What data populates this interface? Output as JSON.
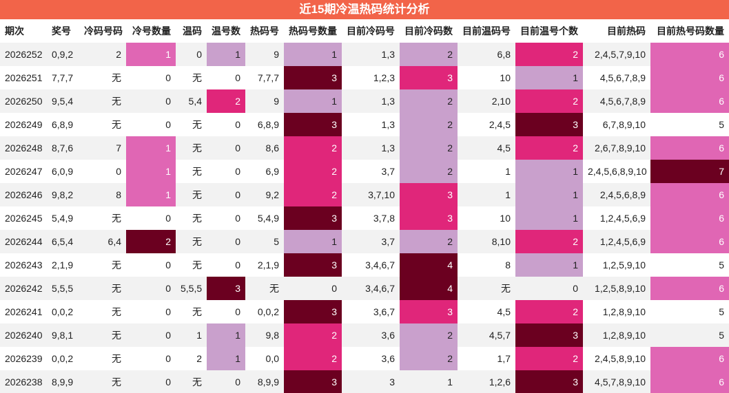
{
  "title": "近15期冷温热码统计分析",
  "table": {
    "columns": [
      "期次",
      "奖号",
      "冷码号码",
      "冷号数量",
      "温码",
      "温号数",
      "热码号",
      "热码号数量",
      "目前冷码号",
      "目前冷码数",
      "目前温码号",
      "目前温号个数",
      "目前热码",
      "目前热号码数量"
    ],
    "rows": [
      [
        "2026252",
        "0,9,2",
        "2",
        1,
        "0",
        1,
        "9",
        1,
        "1,3",
        2,
        "6,8",
        2,
        "2,4,5,7,9,10",
        6
      ],
      [
        "2026251",
        "7,7,7",
        "无",
        0,
        "无",
        0,
        "7,7,7",
        3,
        "1,2,3",
        3,
        "10",
        1,
        "4,5,6,7,8,9",
        6
      ],
      [
        "2026250",
        "9,5,4",
        "无",
        0,
        "5,4",
        2,
        "9",
        1,
        "1,3",
        2,
        "2,10",
        2,
        "4,5,6,7,8,9",
        6
      ],
      [
        "2026249",
        "6,8,9",
        "无",
        0,
        "无",
        0,
        "6,8,9",
        3,
        "1,3",
        2,
        "2,4,5",
        3,
        "6,7,8,9,10",
        5
      ],
      [
        "2026248",
        "8,7,6",
        "7",
        1,
        "无",
        0,
        "8,6",
        2,
        "1,3",
        2,
        "4,5",
        2,
        "2,6,7,8,9,10",
        6
      ],
      [
        "2026247",
        "6,0,9",
        "0",
        1,
        "无",
        0,
        "6,9",
        2,
        "3,7",
        2,
        "1",
        1,
        "2,4,5,6,8,9,10",
        7
      ],
      [
        "2026246",
        "9,8,2",
        "8",
        1,
        "无",
        0,
        "9,2",
        2,
        "3,7,10",
        3,
        "1",
        1,
        "2,4,5,6,8,9",
        6
      ],
      [
        "2026245",
        "5,4,9",
        "无",
        0,
        "无",
        0,
        "5,4,9",
        3,
        "3,7,8",
        3,
        "10",
        1,
        "1,2,4,5,6,9",
        6
      ],
      [
        "2026244",
        "6,5,4",
        "6,4",
        2,
        "无",
        0,
        "5",
        1,
        "3,7",
        2,
        "8,10",
        2,
        "1,2,4,5,6,9",
        6
      ],
      [
        "2026243",
        "2,1,9",
        "无",
        0,
        "无",
        0,
        "2,1,9",
        3,
        "3,4,6,7",
        4,
        "8",
        1,
        "1,2,5,9,10",
        5
      ],
      [
        "2026242",
        "5,5,5",
        "无",
        0,
        "5,5,5",
        3,
        "无",
        0,
        "3,4,6,7",
        4,
        "无",
        0,
        "1,2,5,8,9,10",
        6
      ],
      [
        "2026241",
        "0,0,2",
        "无",
        0,
        "无",
        0,
        "0,0,2",
        3,
        "3,6,7",
        3,
        "4,5",
        2,
        "1,2,8,9,10",
        5
      ],
      [
        "2026240",
        "9,8,1",
        "无",
        0,
        "1",
        1,
        "9,8",
        2,
        "3,6",
        2,
        "4,5,7",
        3,
        "1,2,8,9,10",
        5
      ],
      [
        "2026239",
        "0,0,2",
        "无",
        0,
        "2",
        1,
        "0,0",
        2,
        "3,6",
        2,
        "1,7",
        2,
        "2,4,5,8,9,10",
        6
      ],
      [
        "2026238",
        "8,9,9",
        "无",
        0,
        "无",
        0,
        "8,9,9",
        3,
        "3",
        1,
        "1,2,6",
        3,
        "4,5,7,8,9,10",
        6
      ]
    ]
  },
  "color_scales": {
    "3": {
      "1": "#e066b4",
      "2": "#6b0020"
    },
    "5": {
      "1": "#c9a0cc",
      "2": "#e0267a",
      "3": "#6b0020"
    },
    "7": {
      "1": "#c9a0cc",
      "2": "#e0267a",
      "3": "#6b0020"
    },
    "9": {
      "2": "#c9a0cc",
      "3": "#e0267a",
      "4": "#6b0020"
    },
    "11": {
      "1": "#c9a0cc",
      "2": "#e0267a",
      "3": "#6b0020"
    },
    "13": {
      "6": "#e066b4",
      "7": "#6b0020"
    }
  },
  "dark_text_colors": [
    "#c9a0cc"
  ]
}
